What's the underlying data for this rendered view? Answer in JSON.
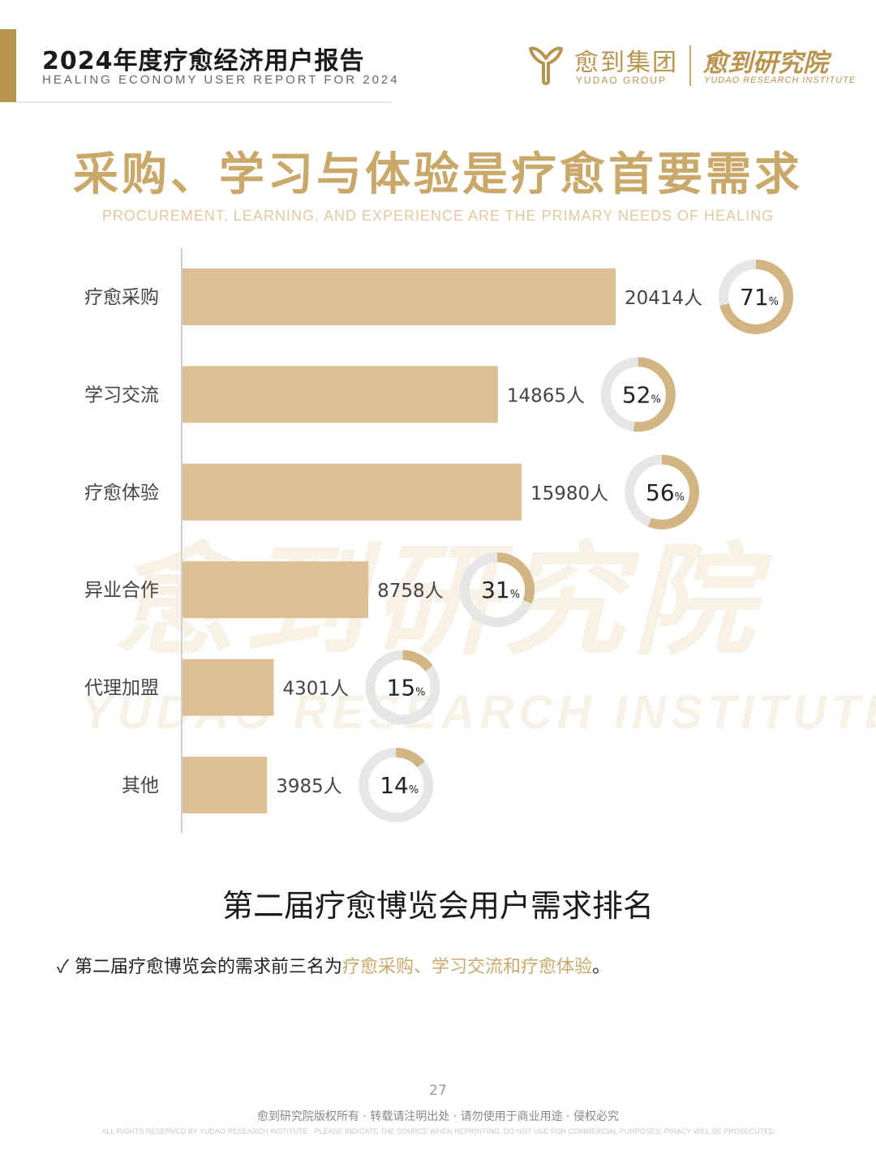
{
  "header": {
    "title": "2024年度疗愈经济用户报告",
    "subtitle": "HEALING ECONOMY USER REPORT FOR 2024"
  },
  "logos": {
    "group_cn": "愈到集团",
    "group_en": "YUDAO GROUP",
    "institute_cn": "愈到研究院",
    "institute_en": "YUDAO RESEARCH INSTITUTE"
  },
  "main": {
    "title": "采购、学习与体验是疗愈首要需求",
    "subtitle": "PROCUREMENT, LEARNING, AND EXPERIENCE ARE THE PRIMARY NEEDS OF HEALING"
  },
  "watermark": {
    "cn": "愈到研究院",
    "en": "YUDAO RESEARCH INSTITUTE"
  },
  "chart_data": {
    "type": "bar",
    "orientation": "horizontal",
    "categories": [
      "疗愈采购",
      "学习交流",
      "疗愈体验",
      "异业合作",
      "代理加盟",
      "其他"
    ],
    "values": [
      20414,
      14865,
      15980,
      8758,
      4301,
      3985
    ],
    "value_suffix": "人",
    "percentages": [
      71,
      52,
      56,
      31,
      15,
      14
    ],
    "percent_suffix": "%",
    "xlim": [
      0,
      20414
    ],
    "grid": false,
    "colors": {
      "bar": "#dcc094",
      "ring": "#d2b583",
      "ring_track": "#e6e6e6"
    }
  },
  "chart_title": "第二届疗愈博览会用户需求排名",
  "note": {
    "check": "✓",
    "prefix": "第二届疗愈博览会的需求前三名为",
    "highlight": "疗愈采购、学习交流和疗愈体验",
    "suffix": "。"
  },
  "footer": {
    "page": "27",
    "cn": "愈到研究院版权所有 · 转载请注明出处 · 请勿使用于商业用途 · 侵权必究",
    "en": "ALL RIGHTS RESERVED BY YUDAO RESEARCH INSTITUTE · PLEASE INDICATE THE SOURCE WHEN REPRINTING, DO NOT USE FOR COMMERCIAL PURPOSES, PIRACY WILL BE PROSECUTED"
  },
  "colors": {
    "gold": "#b8954f",
    "light_gold": "#c9a86a"
  }
}
